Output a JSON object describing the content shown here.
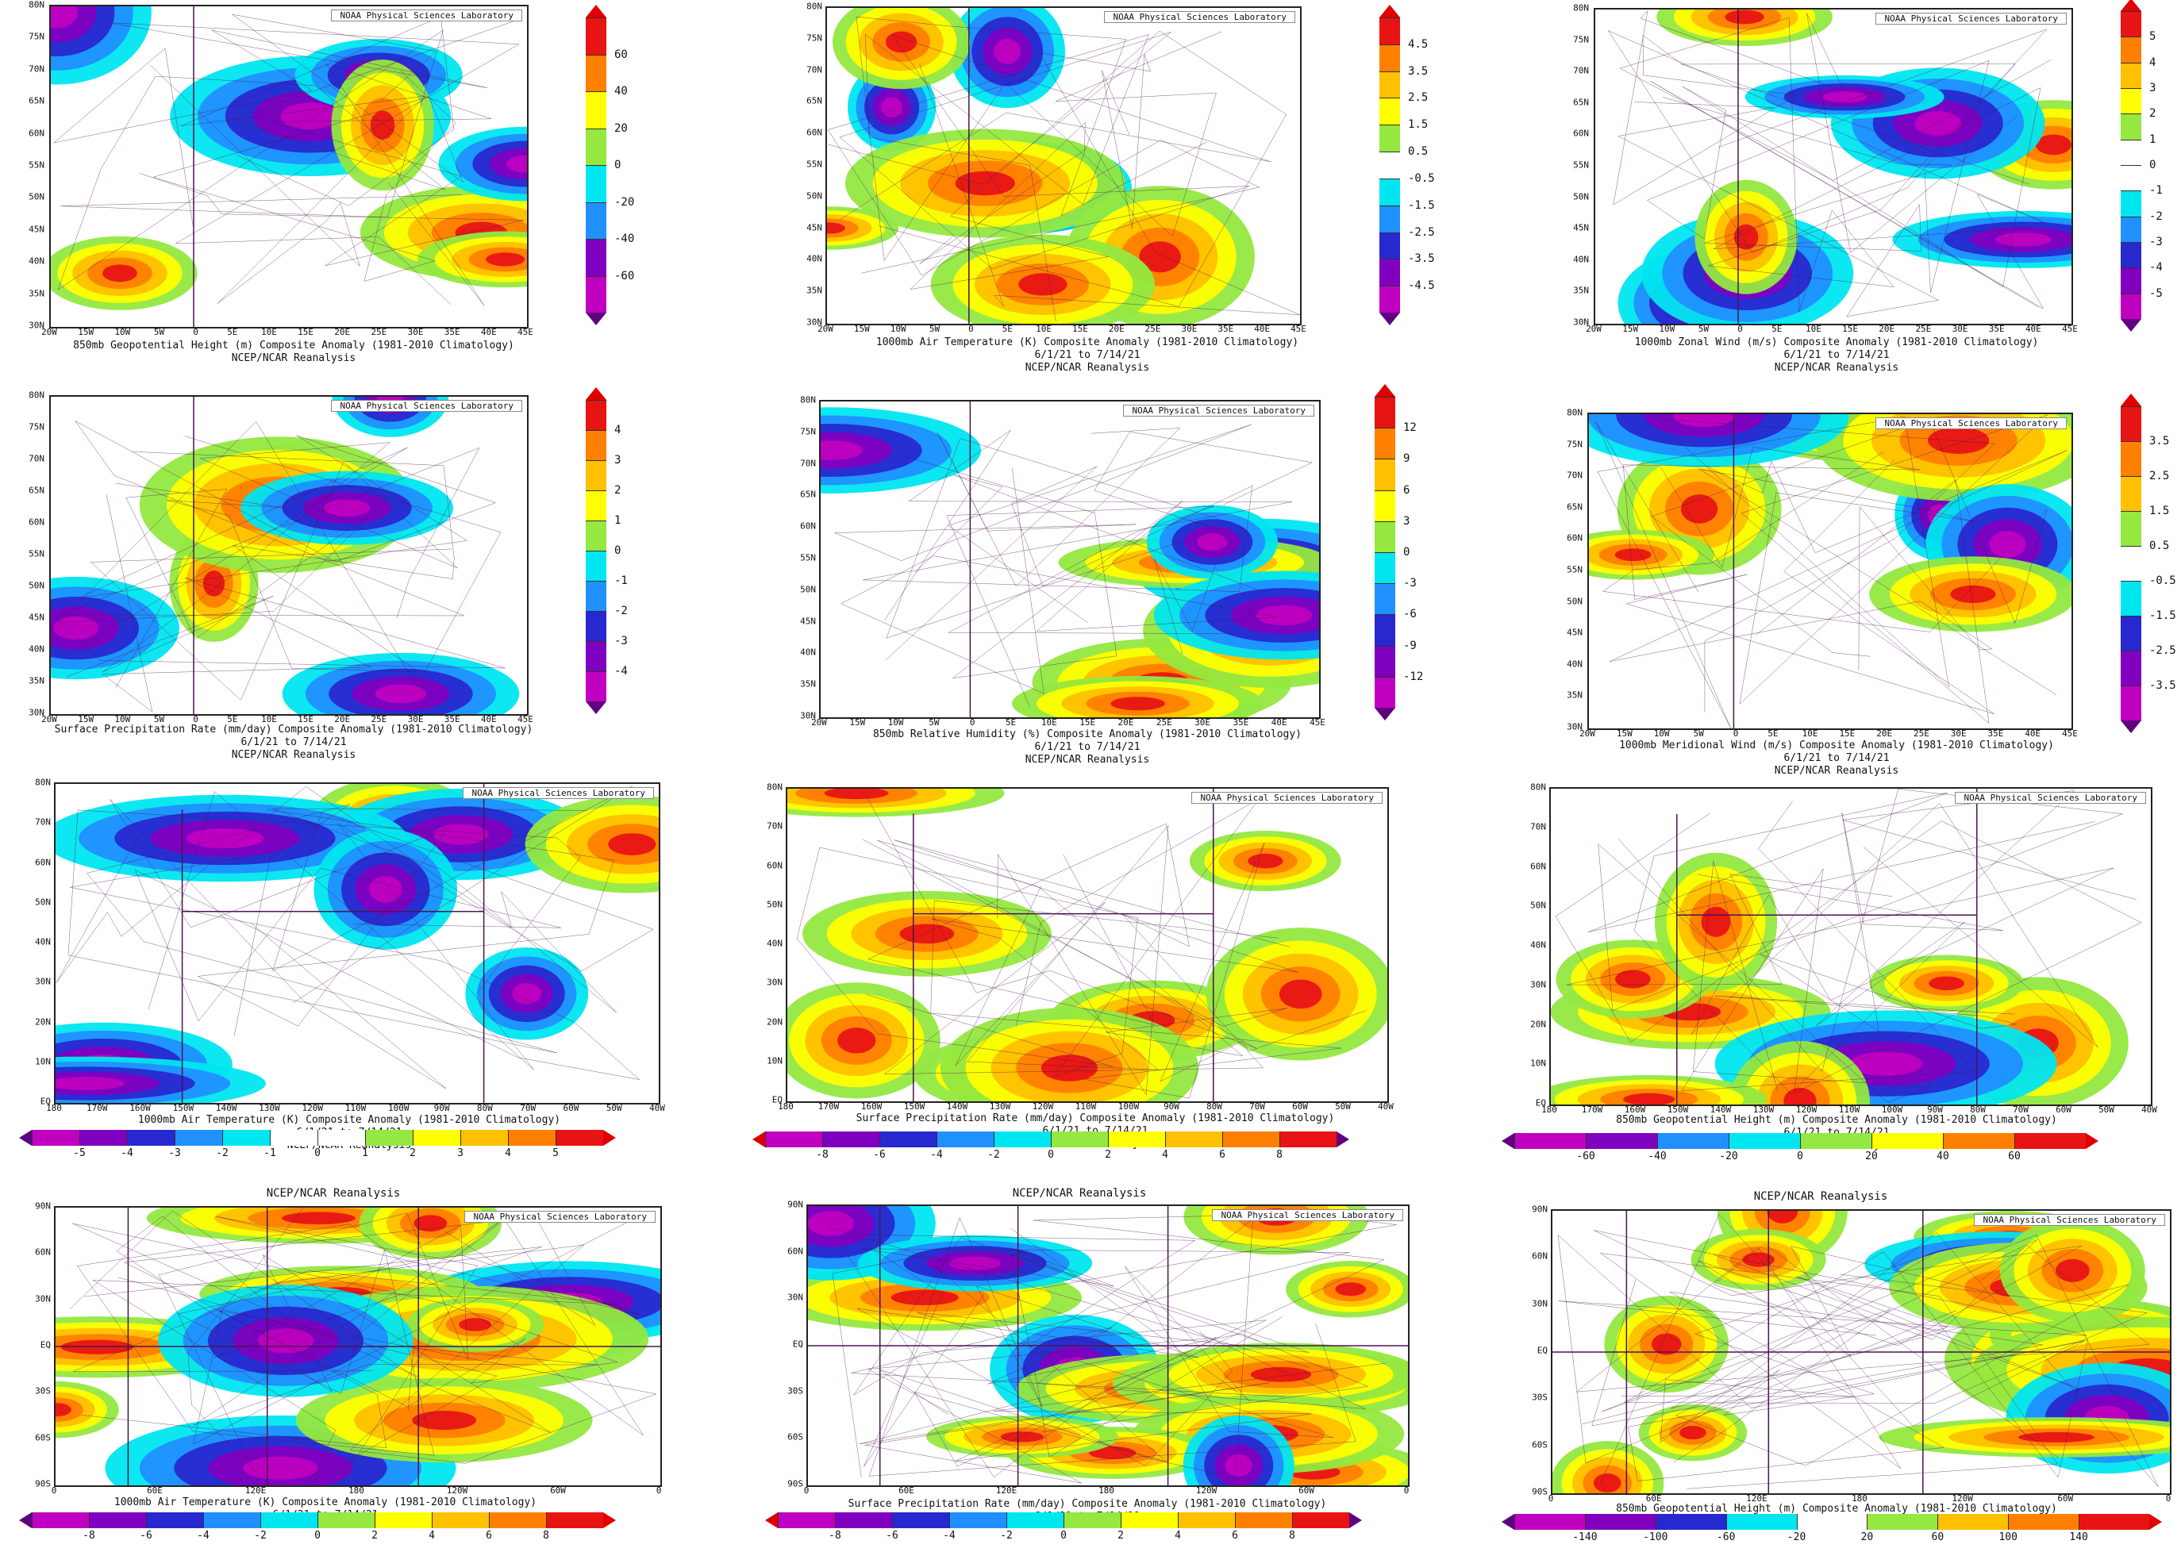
{
  "credit": "NOAA Physical Sciences Laboratory",
  "reanalysis": "NCEP/NCAR Reanalysis",
  "date_range": "6/1/21   to 7/14/21",
  "axes": {
    "europe_lat": [
      "80N",
      "75N",
      "70N",
      "65N",
      "60N",
      "55N",
      "50N",
      "45N",
      "40N",
      "35N",
      "30N"
    ],
    "europe_lon": [
      "20W",
      "15W",
      "10W",
      "5W",
      "0",
      "5E",
      "10E",
      "15E",
      "20E",
      "25E",
      "30E",
      "35E",
      "40E",
      "45E"
    ],
    "na_lat": [
      "80N",
      "70N",
      "60N",
      "50N",
      "40N",
      "30N",
      "20N",
      "10N",
      "EQ"
    ],
    "na_lon": [
      "180",
      "170W",
      "160W",
      "150W",
      "140W",
      "130W",
      "120W",
      "110W",
      "100W",
      "90W",
      "80W",
      "70W",
      "60W",
      "50W",
      "40W"
    ],
    "global_lat": [
      "90N",
      "60N",
      "30N",
      "EQ",
      "30S",
      "60S",
      "90S"
    ],
    "global_lon": [
      "0",
      "60E",
      "120E",
      "180",
      "120W",
      "60W",
      "0"
    ]
  },
  "colors": {
    "pos": [
      "#ffffff",
      "#94e840",
      "#ffff00",
      "#ffc000",
      "#ff8000",
      "#e81414"
    ],
    "neg": [
      "#ffffff",
      "#00e6f0",
      "#2090ff",
      "#2828d0",
      "#8000c0",
      "#c000c0"
    ],
    "line": "#4a1450"
  },
  "panels": [
    {
      "title": "850mb Geopotential Height (m) Composite Anomaly (1981-2010 Climatology)",
      "colorbar": [
        "60",
        "40",
        "20",
        "0",
        "-20",
        "-40",
        "-60"
      ]
    },
    {
      "title": "1000mb Air Temperature (K) Composite Anomaly (1981-2010 Climatology)",
      "colorbar": [
        "4.5",
        "3.5",
        "2.5",
        "1.5",
        "0.5",
        "-0.5",
        "-1.5",
        "-2.5",
        "-3.5",
        "-4.5"
      ]
    },
    {
      "title": "1000mb Zonal Wind (m/s) Composite Anomaly (1981-2010 Climatology)",
      "colorbar": [
        "5",
        "4",
        "3",
        "2",
        "1",
        "0",
        "-1",
        "-2",
        "-3",
        "-4",
        "-5"
      ]
    },
    {
      "title": "Surface Precipitation Rate (mm/day) Composite Anomaly (1981-2010 Climatology)",
      "colorbar": [
        "4",
        "3",
        "2",
        "1",
        "0",
        "-1",
        "-2",
        "-3",
        "-4"
      ]
    },
    {
      "title": "850mb Relative Humidity (%) Composite Anomaly (1981-2010 Climatology)",
      "colorbar": [
        "12",
        "9",
        "6",
        "3",
        "0",
        "-3",
        "-6",
        "-9",
        "-12"
      ]
    },
    {
      "title": "1000mb Meridional Wind (m/s) Composite Anomaly (1981-2010 Climatology)",
      "colorbar": [
        "3.5",
        "2.5",
        "1.5",
        "0.5",
        "-0.5",
        "-1.5",
        "-2.5",
        "-3.5"
      ]
    },
    {
      "title": "1000mb Air Temperature (K) Composite Anomaly (1981-2010 Climatology)",
      "colorbar": [
        "-5",
        "-4",
        "-3",
        "-2",
        "-1",
        "0",
        "1",
        "2",
        "3",
        "4",
        "5"
      ]
    },
    {
      "title": "Surface Precipitation Rate (mm/day) Composite Anomaly (1981-2010 Climatology)",
      "colorbar": [
        "-8",
        "-6",
        "-4",
        "-2",
        "0",
        "2",
        "4",
        "6",
        "8"
      ]
    },
    {
      "title": "850mb Geopotential Height (m) Composite Anomaly (1981-2010 Climatology)",
      "colorbar": [
        "-60",
        "-40",
        "-20",
        "0",
        "20",
        "40",
        "60"
      ]
    },
    {
      "title": "1000mb Air Temperature (K) Composite Anomaly (1981-2010 Climatology)",
      "colorbar": [
        "-8",
        "-6",
        "-4",
        "-2",
        "0",
        "2",
        "4",
        "6",
        "8"
      ]
    },
    {
      "title": "Surface Precipitation Rate (mm/day) Composite Anomaly (1981-2010 Climatology)",
      "colorbar": [
        "-8",
        "-6",
        "-4",
        "-2",
        "0",
        "2",
        "4",
        "6",
        "8"
      ]
    },
    {
      "title": "850mb Geopotential Height (m) Composite Anomaly (1981-2010 Climatology)",
      "colorbar": [
        "-140",
        "-100",
        "-60",
        "-20",
        "20",
        "60",
        "100",
        "140"
      ]
    }
  ]
}
